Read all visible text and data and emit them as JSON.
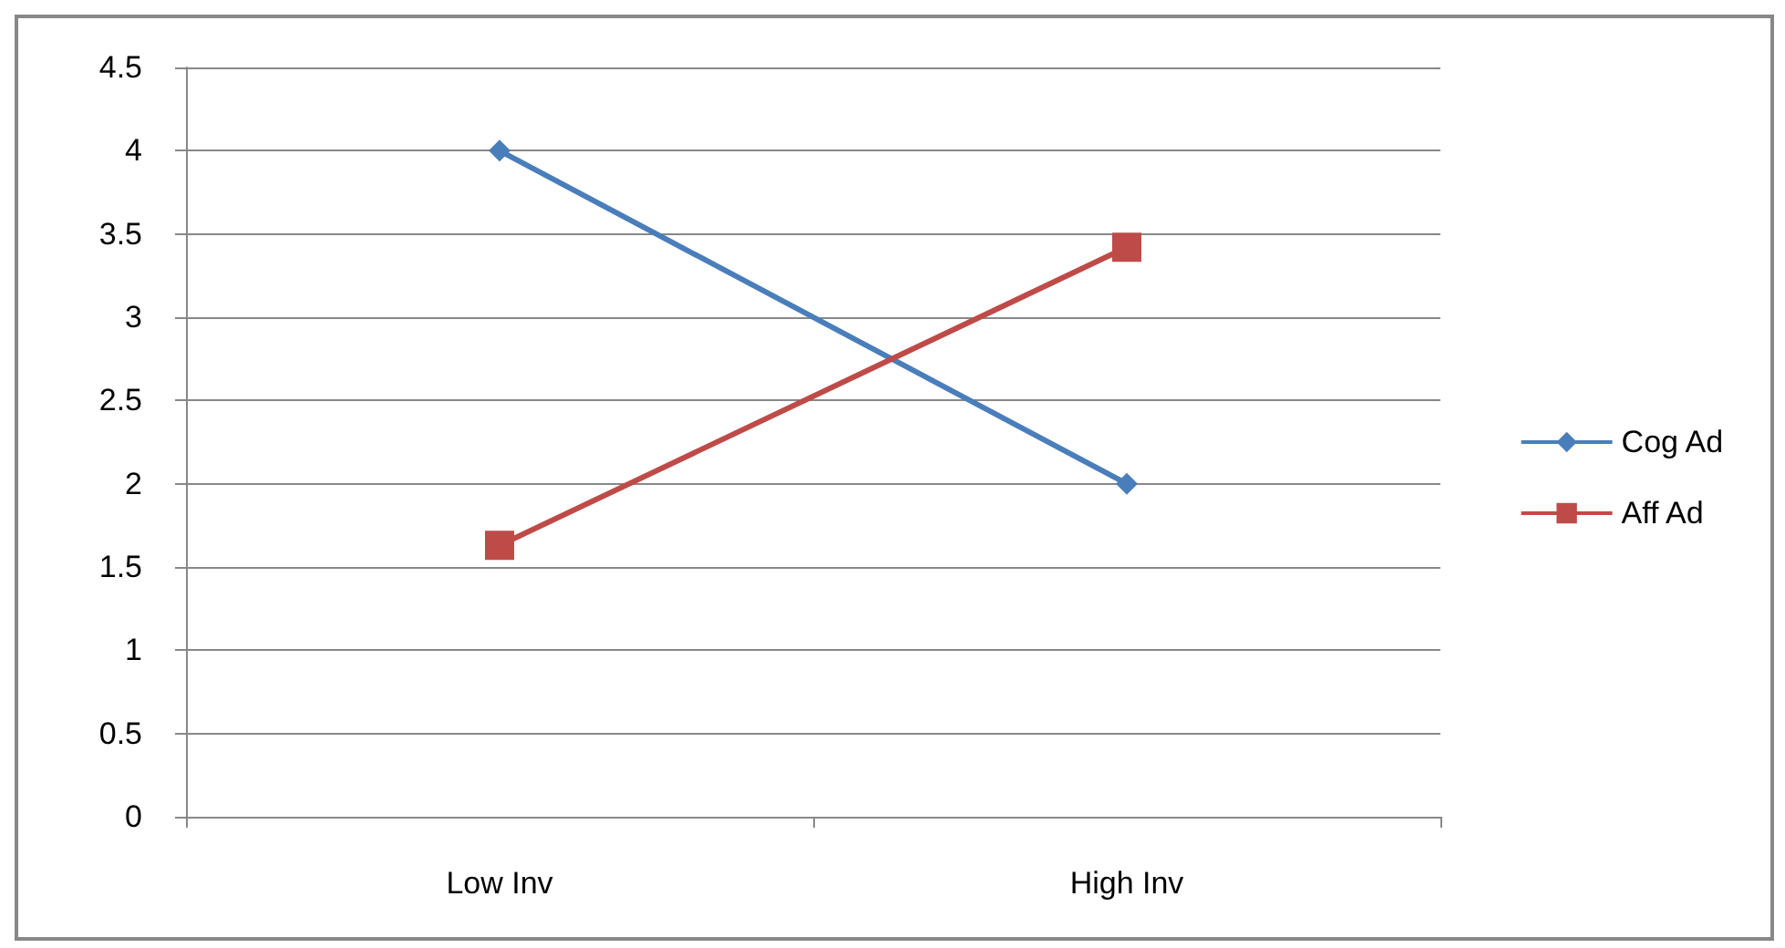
{
  "chart_data": {
    "type": "line",
    "categories": [
      "Low Inv",
      "High Inv"
    ],
    "series": [
      {
        "name": "Cog Ad",
        "color": "#4a7ebb",
        "values": [
          4,
          2
        ],
        "marker": "diamond"
      },
      {
        "name": "Aff Ad",
        "color": "#be4b48",
        "values": [
          1.63,
          3.42
        ],
        "marker": "square"
      }
    ],
    "ylim": [
      0,
      4.5
    ],
    "yticks": [
      0,
      0.5,
      1,
      1.5,
      2,
      2.5,
      3,
      3.5,
      4,
      4.5
    ],
    "grid": "y",
    "legend": "right"
  }
}
